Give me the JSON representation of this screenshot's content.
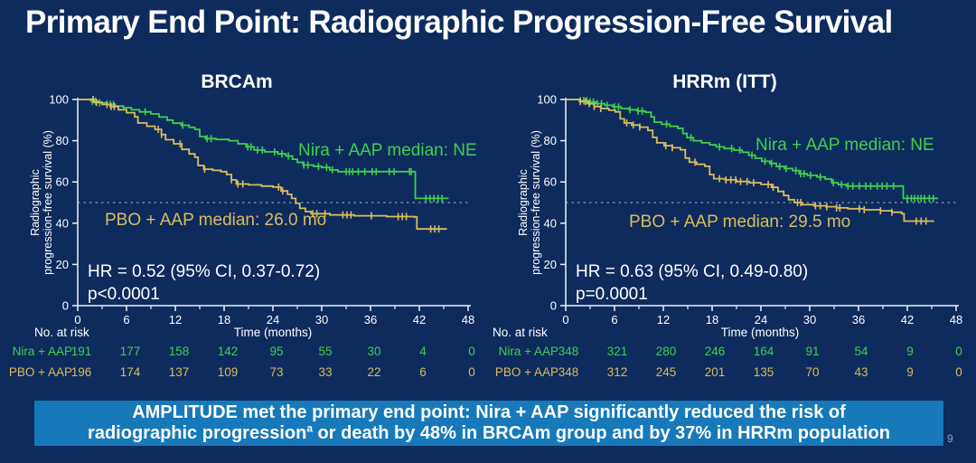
{
  "title": "Primary End Point: Radiographic Progression-Free Survival",
  "page_number": "9",
  "colors": {
    "background": "#0e2b5e",
    "banner_blue": "#1779b9",
    "green": "#3fd04c",
    "yellow": "#d9bd5c",
    "axis": "#eef2f8",
    "dashed": "#aab8cc",
    "text_white": "#ffffff"
  },
  "banner": {
    "line1": "AMPLITUDE met the primary end point: Nira + AAP significantly reduced the risk of",
    "line2_pre": "radiographic progression",
    "line2_sup": "a",
    "line2_post": " or death by 48% in BRCAm group and by 37% in HRRm population"
  },
  "chart_data": [
    {
      "type": "line",
      "subtype": "kaplan-meier-step",
      "title": "BRCAm",
      "xlabel": "Time (months)",
      "ylabel_line1": "Radiographic",
      "ylabel_line2": "progression-free survival (%)",
      "xlim": [
        0,
        48
      ],
      "ylim": [
        0,
        100
      ],
      "xticks": [
        0,
        6,
        12,
        18,
        24,
        30,
        36,
        42,
        48
      ],
      "yticks": [
        0,
        20,
        40,
        60,
        80,
        100
      ],
      "grid": false,
      "reference_line_y": 50,
      "hr_text": "HR = 0.52 (95% CI, 0.37-0.72)",
      "p_text": "p<0.0001",
      "series": [
        {
          "name": "Nira + AAP",
          "label": "Nira + AAP median: NE",
          "median": "NE",
          "color": "green",
          "steps": [
            [
              0,
              100
            ],
            [
              1.6,
              99.2
            ],
            [
              2.6,
              98.4
            ],
            [
              3.6,
              97.6
            ],
            [
              4.6,
              96.8
            ],
            [
              5.6,
              96
            ],
            [
              6.6,
              95
            ],
            [
              7.6,
              94
            ],
            [
              9,
              93
            ],
            [
              10,
              91.5
            ],
            [
              11,
              90
            ],
            [
              11.7,
              88.5
            ],
            [
              12.7,
              87.5
            ],
            [
              13.7,
              86.5
            ],
            [
              14.4,
              85.5
            ],
            [
              15,
              82
            ],
            [
              15.7,
              81
            ],
            [
              17,
              80.6
            ],
            [
              18.6,
              80
            ],
            [
              19.7,
              78.5
            ],
            [
              20.7,
              77
            ],
            [
              21.7,
              75.5
            ],
            [
              23,
              74.6
            ],
            [
              24.6,
              73.6
            ],
            [
              25.6,
              72.6
            ],
            [
              26.4,
              71
            ],
            [
              27,
              69.5
            ],
            [
              27.7,
              68.2
            ],
            [
              29,
              67.6
            ],
            [
              30,
              67
            ],
            [
              31,
              65.8
            ],
            [
              32,
              65
            ],
            [
              41.3,
              65
            ],
            [
              41.5,
              52
            ],
            [
              45.6,
              52
            ]
          ],
          "censor_months": [
            1.8,
            2.2,
            2.7,
            4,
            4.4,
            8.3,
            12.9,
            15.9,
            16.4,
            20.9,
            21.3,
            22.1,
            22.7,
            24.2,
            25.1,
            25.9,
            27.8,
            28.3,
            29.6,
            30.6,
            31.3,
            33,
            33.4,
            33.8,
            34.5,
            35.3,
            36.2,
            36.7,
            38.3,
            38.9,
            40.8,
            41,
            42.8,
            43.3,
            43.8,
            44.3,
            44.8
          ]
        },
        {
          "name": "PBO + AAP",
          "label": "PBO + AAP median: 26.0 mo",
          "median": "26.0 mo",
          "color": "yellow",
          "steps": [
            [
              0,
              100
            ],
            [
              2,
              98.6
            ],
            [
              3,
              97.6
            ],
            [
              4,
              96.6
            ],
            [
              5,
              95
            ],
            [
              6,
              93.6
            ],
            [
              7,
              91.6
            ],
            [
              7.4,
              88.6
            ],
            [
              8.5,
              87
            ],
            [
              9.5,
              85.5
            ],
            [
              10.3,
              83
            ],
            [
              10.8,
              80.5
            ],
            [
              11.8,
              78.5
            ],
            [
              12.8,
              75.8
            ],
            [
              13.7,
              73.6
            ],
            [
              14.4,
              72
            ],
            [
              14.8,
              68
            ],
            [
              15.5,
              66.2
            ],
            [
              16.6,
              65.6
            ],
            [
              17.6,
              65
            ],
            [
              18.3,
              63.6
            ],
            [
              18.9,
              61
            ],
            [
              19.5,
              59
            ],
            [
              21,
              58.6
            ],
            [
              22.6,
              58
            ],
            [
              24,
              57.5
            ],
            [
              25,
              55.6
            ],
            [
              25.8,
              54
            ],
            [
              26.3,
              52
            ],
            [
              26.8,
              49.6
            ],
            [
              27.3,
              47.2
            ],
            [
              28,
              45.6
            ],
            [
              28.7,
              44.6
            ],
            [
              31,
              44
            ],
            [
              34,
              43.6
            ],
            [
              38,
              43.2
            ],
            [
              41.4,
              43
            ],
            [
              41.7,
              37.2
            ],
            [
              45.3,
              36.8
            ]
          ],
          "censor_months": [
            1.9,
            2.3,
            3.6,
            4.1,
            4.5,
            9.9,
            10.3,
            12.6,
            15.6,
            18.9,
            19.7,
            20.3,
            24.7,
            25.2,
            28.9,
            29.4,
            30.4,
            32.6,
            33.1,
            33.6,
            36.1,
            39.4,
            39.9,
            40.4,
            43.4,
            43.9,
            44.4
          ]
        }
      ],
      "at_risk": {
        "header": "No. at risk",
        "time_label": "Time (months)",
        "rows": [
          {
            "name": "Nira + AAP",
            "color": "green",
            "values": [
              "191",
              "177",
              "158",
              "142",
              "95",
              "55",
              "30",
              "4",
              "0"
            ]
          },
          {
            "name": "PBO + AAP",
            "color": "yellow",
            "values": [
              "196",
              "174",
              "137",
              "109",
              "73",
              "33",
              "22",
              "6",
              "0"
            ]
          }
        ]
      }
    },
    {
      "type": "line",
      "subtype": "kaplan-meier-step",
      "title": "HRRm (ITT)",
      "xlabel": "Time (months)",
      "ylabel_line1": "Radiographic",
      "ylabel_line2": "progression-free survival (%)",
      "xlim": [
        0,
        48
      ],
      "ylim": [
        0,
        100
      ],
      "xticks": [
        0,
        6,
        12,
        18,
        24,
        30,
        36,
        42,
        48
      ],
      "yticks": [
        0,
        20,
        40,
        60,
        80,
        100
      ],
      "grid": false,
      "reference_line_y": 50,
      "hr_text": "HR = 0.63 (95% CI, 0.49-0.80)",
      "p_text": "p=0.0001",
      "series": [
        {
          "name": "Nira + AAP",
          "label": "Nira + AAP median: NE",
          "median": "NE",
          "color": "green",
          "steps": [
            [
              0,
              100
            ],
            [
              1.7,
              99.4
            ],
            [
              2.7,
              98.8
            ],
            [
              3.7,
              98
            ],
            [
              4.8,
              97.2
            ],
            [
              5.8,
              96.4
            ],
            [
              6.8,
              95.6
            ],
            [
              7.8,
              95
            ],
            [
              8.8,
              94.4
            ],
            [
              9.8,
              93.8
            ],
            [
              10.5,
              91.5
            ],
            [
              10.9,
              89
            ],
            [
              11.8,
              88
            ],
            [
              12.8,
              87
            ],
            [
              13.8,
              86
            ],
            [
              14.4,
              83.5
            ],
            [
              14.9,
              81.5
            ],
            [
              15.7,
              80
            ],
            [
              16.7,
              79
            ],
            [
              17.7,
              78
            ],
            [
              18.5,
              77
            ],
            [
              19.5,
              76.2
            ],
            [
              20.7,
              75.4
            ],
            [
              21.7,
              74.4
            ],
            [
              22.5,
              73
            ],
            [
              23.3,
              71.5
            ],
            [
              24.1,
              70
            ],
            [
              25.1,
              69
            ],
            [
              25.9,
              67.5
            ],
            [
              26.9,
              66.5
            ],
            [
              27.9,
              65.5
            ],
            [
              28.7,
              64
            ],
            [
              29.7,
              63.2
            ],
            [
              30.9,
              62.4
            ],
            [
              31.9,
              61.4
            ],
            [
              32.7,
              59.6
            ],
            [
              33.5,
              58.7
            ],
            [
              34.5,
              58
            ],
            [
              41.2,
              58
            ],
            [
              41.5,
              52
            ],
            [
              45.8,
              52
            ]
          ],
          "censor_months": [
            1.8,
            2.2,
            2.6,
            3,
            3.4,
            3.9,
            4.4,
            5.1,
            6,
            6.5,
            7.9,
            8.9,
            9.4,
            12.4,
            15.4,
            18.9,
            20.4,
            21.4,
            22.9,
            24.5,
            25.3,
            26.3,
            27.1,
            28.3,
            28.9,
            29.3,
            30.1,
            31.3,
            32.9,
            33.9,
            34.7,
            35.3,
            36.1,
            36.9,
            37.5,
            38.3,
            38.9,
            39.5,
            40.3,
            42,
            42.5,
            42.9,
            43.3,
            43.7,
            44.1,
            44.7,
            45.2
          ]
        },
        {
          "name": "PBO + AAP",
          "label": "PBO + AAP median: 29.5 mo",
          "median": "29.5 mo",
          "color": "yellow",
          "steps": [
            [
              0,
              100
            ],
            [
              1.7,
              99
            ],
            [
              2.7,
              98
            ],
            [
              3.5,
              96.6
            ],
            [
              4.3,
              95.6
            ],
            [
              5.3,
              94.8
            ],
            [
              6.1,
              94
            ],
            [
              6.7,
              90.6
            ],
            [
              7.2,
              88.6
            ],
            [
              8.1,
              87.6
            ],
            [
              9.1,
              86.6
            ],
            [
              10.1,
              85
            ],
            [
              10.7,
              81.6
            ],
            [
              11.2,
              79
            ],
            [
              12.1,
              77.6
            ],
            [
              13.1,
              76.6
            ],
            [
              14.1,
              75.6
            ],
            [
              14.7,
              71.6
            ],
            [
              15.2,
              69.6
            ],
            [
              16.1,
              68.6
            ],
            [
              17.1,
              67.6
            ],
            [
              17.7,
              63.6
            ],
            [
              18.2,
              61.6
            ],
            [
              19.6,
              61
            ],
            [
              21,
              60.2
            ],
            [
              22.6,
              59.6
            ],
            [
              24,
              58.8
            ],
            [
              25.3,
              57.4
            ],
            [
              26.1,
              55.4
            ],
            [
              26.8,
              53.4
            ],
            [
              27.4,
              51.4
            ],
            [
              28.1,
              50
            ],
            [
              29.1,
              49
            ],
            [
              30.5,
              48.4
            ],
            [
              32,
              48
            ],
            [
              33.3,
              47.4
            ],
            [
              34.7,
              47
            ],
            [
              36.7,
              46.5
            ],
            [
              38.7,
              46
            ],
            [
              40.1,
              45.3
            ],
            [
              41.3,
              44.6
            ],
            [
              41.6,
              41
            ],
            [
              45.3,
              41
            ]
          ],
          "censor_months": [
            1.8,
            2.4,
            2.9,
            3.5,
            4.3,
            7.5,
            8.3,
            9.1,
            12.3,
            13.1,
            15.9,
            18.9,
            19.7,
            20.3,
            20.9,
            21.5,
            22.3,
            23.1,
            24.9,
            25.5,
            28.5,
            28.9,
            30.7,
            31.3,
            32.1,
            33.3,
            33.7,
            36.1,
            36.7,
            38.7,
            40.1,
            43.1,
            43.7,
            44.3
          ]
        }
      ],
      "at_risk": {
        "header": "No. at risk",
        "time_label": "Time (months)",
        "rows": [
          {
            "name": "Nira + AAP",
            "color": "green",
            "values": [
              "348",
              "321",
              "280",
              "246",
              "164",
              "91",
              "54",
              "9",
              "0"
            ]
          },
          {
            "name": "PBO + AAP",
            "color": "yellow",
            "values": [
              "348",
              "312",
              "245",
              "201",
              "135",
              "70",
              "43",
              "9",
              "0"
            ]
          }
        ]
      }
    }
  ]
}
